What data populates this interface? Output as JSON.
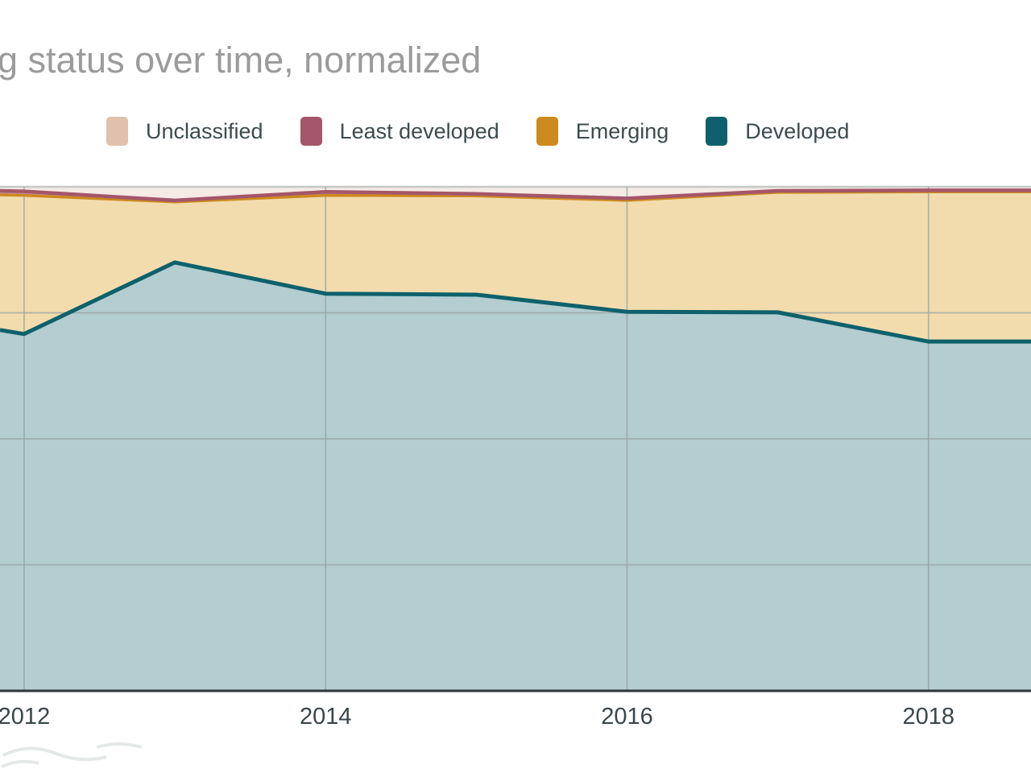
{
  "title": {
    "text": "g status over time, normalized"
  },
  "legend": {
    "position": "top",
    "items": [
      {
        "label": "Unclassified",
        "color": "#dfc1ad"
      },
      {
        "label": "Least developed",
        "color": "#a4566a"
      },
      {
        "label": "Emerging",
        "color": "#cd8a1f"
      },
      {
        "label": "Developed",
        "color": "#0e616b"
      }
    ]
  },
  "x_axis": {
    "tick_labels": [
      "2012",
      "2014",
      "2016",
      "2018"
    ],
    "tick_years": [
      2012,
      2014,
      2016,
      2018
    ]
  },
  "colors": {
    "title_text": "#9b9b9b",
    "legend_text": "#3d4b4f",
    "axis_label_text": "#3a464a",
    "gridline": "#98a2a2",
    "top_gridline": "#c5c8c7",
    "axis_line": "#2d383b"
  },
  "chart_data": {
    "type": "area",
    "stacked": true,
    "normalized": true,
    "title": "g status over time, normalized",
    "xlabel": "",
    "ylabel": "",
    "ylim": [
      0,
      100
    ],
    "y_gridlines_pct": [
      25,
      50,
      75,
      100
    ],
    "grid": true,
    "legend_position": "top",
    "x": [
      2011.84,
      2012,
      2013,
      2014,
      2015,
      2016,
      2017,
      2018,
      2018.68
    ],
    "x_ticks": [
      2012,
      2014,
      2016,
      2018
    ],
    "series": [
      {
        "name": "Developed",
        "color": "#0e616b",
        "fill": "#b3cdd1",
        "values": [
          71.6,
          70.8,
          85.0,
          78.8,
          78.6,
          75.2,
          75.1,
          69.3,
          69.3
        ]
      },
      {
        "name": "Emerging",
        "color": "#cd8a1f",
        "fill": "#f2dcad",
        "values": [
          26.8,
          27.5,
          12.0,
          19.5,
          19.6,
          22.1,
          23.8,
          29.7,
          29.7
        ]
      },
      {
        "name": "Least developed",
        "color": "#a4566a",
        "fill": "#c98fa0",
        "values": [
          0.8,
          0.8,
          0.3,
          0.7,
          0.4,
          0.4,
          0.3,
          0.3,
          0.3
        ]
      },
      {
        "name": "Unclassified",
        "color": "#dfc1ad",
        "fill": "#f5eae4",
        "values": [
          0.8,
          0.9,
          2.7,
          1.0,
          1.4,
          2.3,
          0.8,
          0.7,
          0.7
        ]
      }
    ]
  }
}
